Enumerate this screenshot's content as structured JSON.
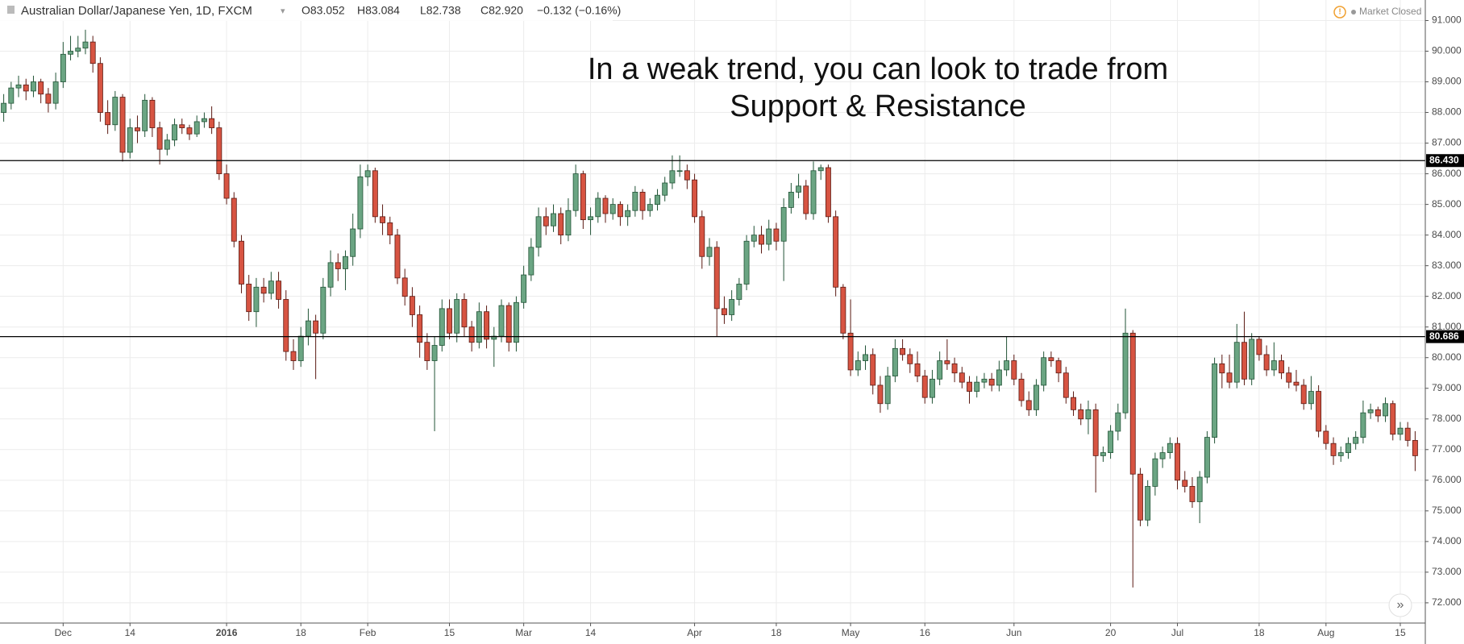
{
  "header": {
    "symbol": "Australian Dollar/Japanese Yen, 1D, FXCM",
    "open": "O83.052",
    "high": "H83.084",
    "low": "L82.738",
    "close": "C82.920",
    "change": "−0.132 (−0.16%)",
    "status": "Market Closed"
  },
  "chart_data": {
    "type": "candlestick",
    "annotation": [
      "In a weak trend, you can look to trade from",
      "Support & Resistance"
    ],
    "categories": [
      null,
      null,
      null,
      null,
      null,
      null,
      null,
      null,
      "Dec",
      null,
      null,
      null,
      null,
      null,
      null,
      null,
      null,
      "14",
      null,
      null,
      null,
      null,
      null,
      null,
      null,
      null,
      null,
      null,
      null,
      null,
      "2016",
      null,
      null,
      null,
      null,
      null,
      null,
      null,
      null,
      null,
      "18",
      null,
      null,
      null,
      null,
      null,
      null,
      null,
      null,
      "Feb",
      null,
      null,
      null,
      null,
      null,
      null,
      null,
      null,
      null,
      null,
      "15",
      null,
      null,
      null,
      null,
      null,
      null,
      null,
      null,
      null,
      "Mar",
      null,
      null,
      null,
      null,
      null,
      null,
      null,
      null,
      "14",
      null,
      null,
      null,
      null,
      null,
      null,
      null,
      null,
      null,
      null,
      null,
      null,
      null,
      "Apr",
      null,
      null,
      null,
      null,
      null,
      null,
      null,
      null,
      null,
      null,
      "18",
      null,
      null,
      null,
      null,
      null,
      null,
      null,
      null,
      null,
      "May",
      null,
      null,
      null,
      null,
      null,
      null,
      null,
      null,
      null,
      "16",
      null,
      null,
      null,
      null,
      null,
      null,
      null,
      null,
      null,
      null,
      null,
      "Jun",
      null,
      null,
      null,
      null,
      null,
      null,
      null,
      null,
      null,
      null,
      null,
      null,
      "20",
      null,
      null,
      null,
      null,
      null,
      null,
      null,
      null,
      "Jul",
      null,
      null,
      null,
      null,
      null,
      null,
      null,
      null,
      null,
      null,
      "18",
      null,
      null,
      null,
      null,
      null,
      null,
      null,
      null,
      "Aug",
      null,
      null,
      null,
      null,
      null,
      null,
      null,
      null,
      null,
      "15",
      null,
      null
    ],
    "ohlc": [
      [
        88.0,
        88.6,
        87.7,
        88.3
      ],
      [
        88.3,
        89.0,
        88.1,
        88.8
      ],
      [
        88.8,
        89.2,
        88.5,
        88.9
      ],
      [
        88.9,
        89.1,
        88.4,
        88.7
      ],
      [
        88.7,
        89.2,
        88.5,
        89.0
      ],
      [
        89.0,
        89.1,
        88.3,
        88.6
      ],
      [
        88.6,
        88.8,
        88.0,
        88.3
      ],
      [
        88.3,
        89.3,
        88.1,
        89.0
      ],
      [
        89.0,
        90.3,
        88.8,
        89.9
      ],
      [
        89.9,
        90.5,
        89.7,
        90.0
      ],
      [
        90.0,
        90.5,
        89.8,
        90.1
      ],
      [
        90.1,
        90.7,
        89.9,
        90.3
      ],
      [
        90.3,
        90.5,
        89.3,
        89.6
      ],
      [
        89.6,
        89.8,
        87.7,
        88.0
      ],
      [
        88.0,
        88.4,
        87.3,
        87.6
      ],
      [
        87.6,
        88.7,
        87.4,
        88.5
      ],
      [
        88.5,
        88.6,
        86.4,
        86.7
      ],
      [
        86.7,
        87.8,
        86.5,
        87.5
      ],
      [
        87.5,
        87.9,
        87.0,
        87.4
      ],
      [
        87.4,
        88.6,
        87.2,
        88.4
      ],
      [
        88.4,
        88.5,
        87.2,
        87.5
      ],
      [
        87.5,
        87.7,
        86.3,
        86.8
      ],
      [
        86.8,
        87.3,
        86.6,
        87.1
      ],
      [
        87.1,
        87.8,
        86.9,
        87.6
      ],
      [
        87.6,
        87.8,
        87.3,
        87.5
      ],
      [
        87.5,
        87.6,
        87.1,
        87.3
      ],
      [
        87.3,
        87.9,
        87.2,
        87.7
      ],
      [
        87.7,
        88.0,
        87.5,
        87.8
      ],
      [
        87.8,
        88.2,
        87.3,
        87.5
      ],
      [
        87.5,
        87.7,
        85.8,
        86.0
      ],
      [
        86.0,
        86.3,
        85.0,
        85.2
      ],
      [
        85.2,
        85.4,
        83.6,
        83.8
      ],
      [
        83.8,
        84.0,
        82.1,
        82.4
      ],
      [
        82.4,
        82.7,
        81.2,
        81.5
      ],
      [
        81.5,
        82.6,
        81.0,
        82.3
      ],
      [
        82.3,
        82.6,
        81.8,
        82.1
      ],
      [
        82.1,
        82.8,
        81.9,
        82.5
      ],
      [
        82.5,
        82.8,
        81.6,
        81.9
      ],
      [
        81.9,
        82.2,
        79.9,
        80.2
      ],
      [
        80.2,
        80.6,
        79.6,
        79.9
      ],
      [
        79.9,
        81.0,
        79.7,
        80.7
      ],
      [
        80.7,
        81.6,
        80.4,
        81.2
      ],
      [
        81.2,
        81.4,
        79.3,
        80.8
      ],
      [
        80.8,
        82.6,
        80.6,
        82.3
      ],
      [
        82.3,
        83.5,
        82.0,
        83.1
      ],
      [
        83.1,
        83.4,
        82.5,
        82.9
      ],
      [
        82.9,
        83.5,
        82.2,
        83.3
      ],
      [
        83.3,
        84.7,
        83.0,
        84.2
      ],
      [
        84.2,
        86.3,
        83.9,
        85.9
      ],
      [
        85.9,
        86.3,
        85.6,
        86.1
      ],
      [
        86.1,
        86.2,
        84.4,
        84.6
      ],
      [
        84.6,
        85.0,
        84.0,
        84.4
      ],
      [
        84.4,
        84.6,
        83.7,
        84.0
      ],
      [
        84.0,
        84.2,
        82.4,
        82.6
      ],
      [
        82.6,
        82.9,
        81.7,
        82.0
      ],
      [
        82.0,
        82.3,
        81.0,
        81.4
      ],
      [
        81.4,
        81.7,
        80.0,
        80.5
      ],
      [
        80.5,
        80.8,
        79.6,
        79.9
      ],
      [
        79.9,
        80.7,
        77.6,
        80.4
      ],
      [
        80.4,
        81.9,
        80.2,
        81.6
      ],
      [
        81.6,
        81.9,
        80.6,
        80.8
      ],
      [
        80.8,
        82.1,
        80.5,
        81.9
      ],
      [
        81.9,
        82.1,
        80.7,
        81.0
      ],
      [
        81.0,
        81.2,
        80.2,
        80.5
      ],
      [
        80.5,
        81.8,
        80.3,
        81.5
      ],
      [
        81.5,
        81.7,
        80.3,
        80.6
      ],
      [
        80.6,
        81.0,
        79.7,
        80.7
      ],
      [
        80.7,
        81.9,
        80.5,
        81.7
      ],
      [
        81.7,
        81.8,
        80.2,
        80.5
      ],
      [
        80.5,
        82.0,
        80.2,
        81.8
      ],
      [
        81.8,
        83.0,
        81.6,
        82.7
      ],
      [
        82.7,
        83.9,
        82.5,
        83.6
      ],
      [
        83.6,
        84.9,
        83.3,
        84.6
      ],
      [
        84.6,
        84.9,
        84.0,
        84.3
      ],
      [
        84.3,
        85.0,
        84.1,
        84.7
      ],
      [
        84.7,
        84.9,
        83.7,
        84.0
      ],
      [
        84.0,
        85.2,
        83.8,
        84.8
      ],
      [
        84.8,
        86.3,
        84.6,
        86.0
      ],
      [
        86.0,
        86.1,
        84.2,
        84.5
      ],
      [
        84.5,
        84.9,
        84.0,
        84.6
      ],
      [
        84.6,
        85.4,
        84.4,
        85.2
      ],
      [
        85.2,
        85.3,
        84.4,
        84.7
      ],
      [
        84.7,
        85.2,
        84.5,
        85.0
      ],
      [
        85.0,
        85.1,
        84.3,
        84.6
      ],
      [
        84.6,
        85.0,
        84.3,
        84.8
      ],
      [
        84.8,
        85.6,
        84.6,
        85.4
      ],
      [
        85.4,
        85.5,
        84.5,
        84.8
      ],
      [
        84.8,
        85.2,
        84.6,
        85.0
      ],
      [
        85.0,
        85.5,
        84.8,
        85.3
      ],
      [
        85.3,
        85.9,
        85.1,
        85.7
      ],
      [
        85.7,
        86.6,
        85.5,
        86.1
      ],
      [
        86.1,
        86.6,
        85.9,
        86.1
      ],
      [
        86.1,
        86.3,
        85.5,
        85.8
      ],
      [
        85.8,
        86.0,
        84.4,
        84.6
      ],
      [
        84.6,
        84.8,
        82.9,
        83.3
      ],
      [
        83.3,
        83.9,
        83.0,
        83.6
      ],
      [
        83.6,
        83.8,
        80.7,
        81.6
      ],
      [
        81.6,
        82.0,
        81.1,
        81.4
      ],
      [
        81.4,
        82.2,
        81.2,
        81.9
      ],
      [
        81.9,
        82.6,
        81.7,
        82.4
      ],
      [
        82.4,
        84.0,
        82.2,
        83.8
      ],
      [
        83.8,
        84.3,
        83.6,
        84.0
      ],
      [
        84.0,
        84.3,
        83.4,
        83.7
      ],
      [
        83.7,
        84.5,
        83.5,
        84.2
      ],
      [
        84.2,
        84.4,
        83.5,
        83.8
      ],
      [
        83.8,
        85.2,
        82.5,
        84.9
      ],
      [
        84.9,
        85.7,
        84.7,
        85.4
      ],
      [
        85.4,
        86.0,
        85.2,
        85.6
      ],
      [
        85.6,
        85.8,
        84.5,
        84.7
      ],
      [
        84.7,
        86.4,
        84.5,
        86.1
      ],
      [
        86.1,
        86.3,
        85.8,
        86.2
      ],
      [
        86.2,
        86.3,
        84.4,
        84.6
      ],
      [
        84.6,
        84.8,
        82.0,
        82.3
      ],
      [
        82.3,
        82.4,
        80.6,
        80.8
      ],
      [
        80.8,
        81.9,
        79.4,
        79.6
      ],
      [
        79.6,
        80.2,
        79.4,
        79.9
      ],
      [
        79.9,
        80.4,
        79.6,
        80.1
      ],
      [
        80.1,
        80.3,
        78.8,
        79.1
      ],
      [
        79.1,
        79.4,
        78.2,
        78.5
      ],
      [
        78.5,
        79.7,
        78.3,
        79.4
      ],
      [
        79.4,
        80.6,
        79.2,
        80.3
      ],
      [
        80.3,
        80.6,
        79.9,
        80.1
      ],
      [
        80.1,
        80.3,
        79.5,
        79.8
      ],
      [
        79.8,
        80.2,
        79.2,
        79.4
      ],
      [
        79.4,
        79.6,
        78.5,
        78.7
      ],
      [
        78.7,
        79.6,
        78.5,
        79.3
      ],
      [
        79.3,
        80.2,
        79.1,
        79.9
      ],
      [
        79.9,
        80.6,
        79.6,
        79.8
      ],
      [
        79.8,
        80.0,
        79.2,
        79.5
      ],
      [
        79.5,
        79.7,
        79.0,
        79.2
      ],
      [
        79.2,
        79.4,
        78.5,
        78.9
      ],
      [
        78.9,
        79.4,
        78.7,
        79.2
      ],
      [
        79.2,
        79.5,
        79.0,
        79.3
      ],
      [
        79.3,
        79.5,
        78.9,
        79.1
      ],
      [
        79.1,
        79.9,
        78.9,
        79.6
      ],
      [
        79.6,
        80.7,
        79.4,
        79.9
      ],
      [
        79.9,
        80.1,
        79.1,
        79.3
      ],
      [
        79.3,
        79.5,
        78.4,
        78.6
      ],
      [
        78.6,
        78.9,
        78.1,
        78.3
      ],
      [
        78.3,
        79.3,
        78.1,
        79.1
      ],
      [
        79.1,
        80.2,
        78.9,
        80.0
      ],
      [
        80.0,
        80.2,
        79.7,
        79.9
      ],
      [
        79.9,
        80.0,
        79.2,
        79.5
      ],
      [
        79.5,
        79.7,
        78.5,
        78.7
      ],
      [
        78.7,
        78.9,
        78.1,
        78.3
      ],
      [
        78.3,
        78.5,
        77.8,
        78.0
      ],
      [
        78.0,
        78.6,
        77.5,
        78.3
      ],
      [
        78.3,
        78.5,
        75.6,
        76.8
      ],
      [
        76.8,
        77.1,
        76.6,
        76.9
      ],
      [
        76.9,
        77.8,
        76.7,
        77.6
      ],
      [
        77.6,
        78.5,
        77.3,
        78.2
      ],
      [
        78.2,
        81.6,
        78.0,
        80.8
      ],
      [
        80.8,
        80.9,
        72.5,
        76.2
      ],
      [
        76.2,
        76.4,
        74.5,
        74.7
      ],
      [
        74.7,
        76.0,
        74.5,
        75.8
      ],
      [
        75.8,
        76.9,
        75.5,
        76.7
      ],
      [
        76.7,
        77.1,
        76.4,
        76.9
      ],
      [
        76.9,
        77.4,
        76.7,
        77.2
      ],
      [
        77.2,
        77.4,
        75.7,
        76.0
      ],
      [
        76.0,
        76.3,
        75.6,
        75.8
      ],
      [
        75.8,
        76.1,
        75.1,
        75.3
      ],
      [
        75.3,
        76.3,
        74.6,
        76.1
      ],
      [
        76.1,
        77.6,
        75.9,
        77.4
      ],
      [
        77.4,
        80.0,
        77.2,
        79.8
      ],
      [
        79.8,
        80.1,
        79.0,
        79.5
      ],
      [
        79.5,
        80.1,
        79.0,
        79.2
      ],
      [
        79.2,
        81.1,
        79.0,
        80.5
      ],
      [
        80.5,
        81.5,
        79.1,
        79.3
      ],
      [
        79.3,
        80.8,
        79.1,
        80.6
      ],
      [
        80.6,
        80.7,
        79.9,
        80.1
      ],
      [
        80.1,
        80.4,
        79.4,
        79.6
      ],
      [
        79.6,
        80.5,
        79.4,
        79.9
      ],
      [
        79.9,
        80.1,
        79.3,
        79.5
      ],
      [
        79.5,
        79.7,
        79.0,
        79.2
      ],
      [
        79.2,
        79.6,
        78.9,
        79.1
      ],
      [
        79.1,
        79.3,
        78.3,
        78.5
      ],
      [
        78.5,
        79.4,
        78.3,
        78.9
      ],
      [
        78.9,
        79.1,
        77.4,
        77.6
      ],
      [
        77.6,
        77.8,
        77.0,
        77.2
      ],
      [
        77.2,
        77.4,
        76.5,
        76.8
      ],
      [
        76.8,
        77.1,
        76.6,
        76.9
      ],
      [
        76.9,
        77.4,
        76.7,
        77.2
      ],
      [
        77.2,
        77.6,
        77.0,
        77.4
      ],
      [
        77.4,
        78.6,
        77.2,
        78.2
      ],
      [
        78.2,
        78.5,
        78.0,
        78.3
      ],
      [
        78.3,
        78.4,
        77.9,
        78.1
      ],
      [
        78.1,
        78.7,
        77.9,
        78.5
      ],
      [
        78.5,
        78.6,
        77.3,
        77.5
      ],
      [
        77.5,
        77.9,
        77.3,
        77.7
      ],
      [
        77.7,
        77.9,
        77.1,
        77.3
      ],
      [
        77.3,
        77.6,
        76.3,
        76.8
      ]
    ],
    "up_color": "#6ba583",
    "down_color": "#d75442",
    "levels": [
      {
        "value": 86.43,
        "label": "86.430"
      },
      {
        "value": 80.686,
        "label": "80.686"
      }
    ],
    "ylim": [
      71.34,
      91.67
    ],
    "yticks": [
      {
        "value": 72,
        "label": "72.000"
      },
      {
        "value": 73,
        "label": "73.000"
      },
      {
        "value": 74,
        "label": "74.000"
      },
      {
        "value": 75,
        "label": "75.000"
      },
      {
        "value": 76,
        "label": "76.000"
      },
      {
        "value": 77,
        "label": "77.000"
      },
      {
        "value": 78,
        "label": "78.000"
      },
      {
        "value": 79,
        "label": "79.000"
      },
      {
        "value": 80,
        "label": "80.000"
      },
      {
        "value": 81,
        "label": "81.000"
      },
      {
        "value": 82,
        "label": "82.000"
      },
      {
        "value": 83,
        "label": "83.000"
      },
      {
        "value": 84,
        "label": "84.000"
      },
      {
        "value": 85,
        "label": "85.000"
      },
      {
        "value": 86,
        "label": "86.000"
      },
      {
        "value": 87,
        "label": "87.000"
      },
      {
        "value": 88,
        "label": "88.000"
      },
      {
        "value": 89,
        "label": "89.000"
      },
      {
        "value": 90,
        "label": "90.000"
      },
      {
        "value": 91,
        "label": "91.000"
      }
    ],
    "grid": true
  }
}
